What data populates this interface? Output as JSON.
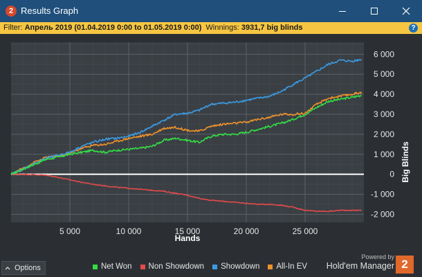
{
  "window": {
    "title": "Results Graph",
    "app_icon_label": "2"
  },
  "filter": {
    "label": "Filter: ",
    "value": "Апрель 2019 (01.04.2019 0:00 to 01.05.2019 0:00)",
    "winnings_label": "  Winnings: ",
    "winnings_value": "3931,7 big blinds",
    "help_icon": "question-icon"
  },
  "footer": {
    "options_label": "Options",
    "powered_by": "Powered by",
    "brand_name": "Hold'em Manager",
    "brand_logo_label": "2"
  },
  "colors": {
    "net_won": "#33dd44",
    "non_showdown": "#e34a4a",
    "showdown": "#3b9ae1",
    "all_in_ev": "#f0922b",
    "zero_line": "#ffffff"
  },
  "chart_data": {
    "type": "line",
    "title": "",
    "xlabel": "Hands",
    "ylabel": "Big Blinds",
    "xlim": [
      0,
      30000
    ],
    "ylim": [
      -2400,
      6600
    ],
    "x_ticks": [
      5000,
      10000,
      15000,
      20000,
      25000
    ],
    "x_tick_labels": [
      "5 000",
      "10 000",
      "15 000",
      "20 000",
      "25 000"
    ],
    "y_ticks": [
      6000,
      5000,
      4000,
      3000,
      2000,
      1000,
      0,
      -1000,
      -2000
    ],
    "y_tick_labels": [
      "6 000",
      "5 000",
      "4 000",
      "3 000",
      "2 000",
      "1 000",
      "0",
      "-1 000",
      "-2 000"
    ],
    "grid": true,
    "legend_position": "bottom",
    "series": [
      {
        "name": "Net Won",
        "key": "net_won",
        "x": [
          0,
          1000,
          2000,
          3000,
          4000,
          5000,
          6000,
          7000,
          8000,
          9000,
          10000,
          11000,
          12000,
          13000,
          14000,
          15000,
          16000,
          17000,
          18000,
          19000,
          20000,
          21000,
          22000,
          23000,
          24000,
          25000,
          26000,
          27000,
          28000,
          29000,
          29800
        ],
        "y": [
          0,
          250,
          500,
          750,
          850,
          1000,
          1100,
          1200,
          1100,
          1200,
          1250,
          1300,
          1400,
          1700,
          1800,
          1700,
          1600,
          1900,
          2000,
          2000,
          2100,
          2250,
          2400,
          2550,
          2750,
          3000,
          3350,
          3650,
          3750,
          3850,
          3950
        ]
      },
      {
        "name": "Non Showdown",
        "key": "non_showdown",
        "x": [
          0,
          1000,
          2000,
          3000,
          4000,
          5000,
          6000,
          7000,
          8000,
          9000,
          10000,
          11000,
          12000,
          13000,
          14000,
          15000,
          16000,
          17000,
          18000,
          19000,
          20000,
          21000,
          22000,
          23000,
          24000,
          25000,
          26000,
          27000,
          28000,
          29000,
          29800
        ],
        "y": [
          0,
          0,
          -20,
          -50,
          -150,
          -280,
          -400,
          -500,
          -580,
          -650,
          -700,
          -750,
          -800,
          -850,
          -950,
          -1050,
          -1200,
          -1300,
          -1350,
          -1400,
          -1450,
          -1500,
          -1500,
          -1550,
          -1650,
          -1800,
          -1850,
          -1850,
          -1800,
          -1800,
          -1800
        ]
      },
      {
        "name": "Showdown",
        "key": "showdown",
        "x": [
          0,
          1000,
          2000,
          3000,
          4000,
          5000,
          6000,
          7000,
          8000,
          9000,
          10000,
          11000,
          12000,
          13000,
          14000,
          15000,
          16000,
          17000,
          18000,
          19000,
          20000,
          21000,
          22000,
          23000,
          24000,
          25000,
          26000,
          27000,
          28000,
          29000,
          29800
        ],
        "y": [
          0,
          250,
          550,
          800,
          950,
          1100,
          1400,
          1600,
          1750,
          1800,
          1900,
          2100,
          2400,
          2700,
          3000,
          3050,
          3200,
          3500,
          3550,
          3600,
          3700,
          3800,
          3900,
          4150,
          4500,
          4800,
          5150,
          5500,
          5700,
          5650,
          5750
        ]
      },
      {
        "name": "All-In EV",
        "key": "all_in_ev",
        "x": [
          0,
          1000,
          2000,
          3000,
          4000,
          5000,
          6000,
          7000,
          8000,
          9000,
          10000,
          11000,
          12000,
          13000,
          14000,
          15000,
          16000,
          17000,
          18000,
          19000,
          20000,
          21000,
          22000,
          23000,
          24000,
          25000,
          26000,
          27000,
          28000,
          29000,
          29800
        ],
        "y": [
          0,
          300,
          600,
          850,
          900,
          1050,
          1300,
          1450,
          1500,
          1650,
          1800,
          1900,
          2000,
          2300,
          2350,
          2200,
          2150,
          2400,
          2500,
          2550,
          2600,
          2750,
          2850,
          3000,
          3000,
          3050,
          3500,
          3800,
          3900,
          4000,
          4100
        ]
      }
    ]
  }
}
